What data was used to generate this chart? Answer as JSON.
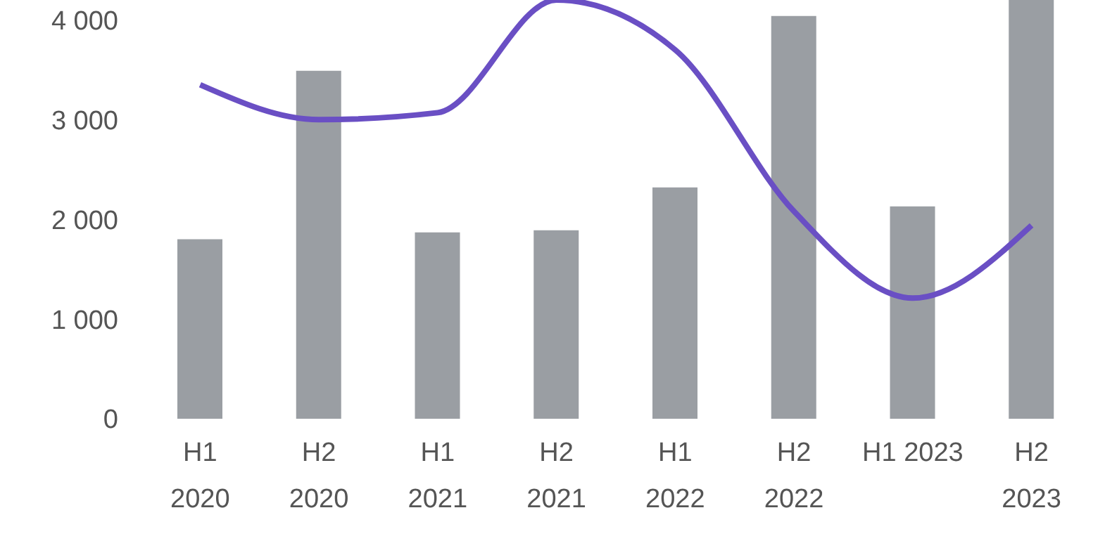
{
  "chart_data": {
    "type": "bar",
    "categories": [
      "H1\n2020",
      "H2\n2020",
      "H1\n2021",
      "H2\n2021",
      "H1\n2022",
      "H2\n2022",
      "H1 2023",
      "H2\n2023"
    ],
    "series": [
      {
        "color": "#9a9ea3",
        "values": [
          1800,
          3490,
          1870,
          1890,
          2320,
          4040,
          2130,
          4200
        ]
      },
      {
        "type": "line",
        "color": "#6a4fc4",
        "values": [
          3350,
          3000,
          3070,
          4200,
          3700,
          2080,
          1210,
          1940
        ]
      }
    ],
    "ylim": [
      0,
      4200
    ],
    "yticks": [
      0,
      {
        "value": 1000,
        "label": "1 000"
      },
      {
        "value": 2000,
        "label": "2 000"
      },
      {
        "value": 3000,
        "label": "3 000"
      },
      {
        "value": 4000,
        "label": "4 000"
      }
    ],
    "grid": false,
    "legend": false
  }
}
